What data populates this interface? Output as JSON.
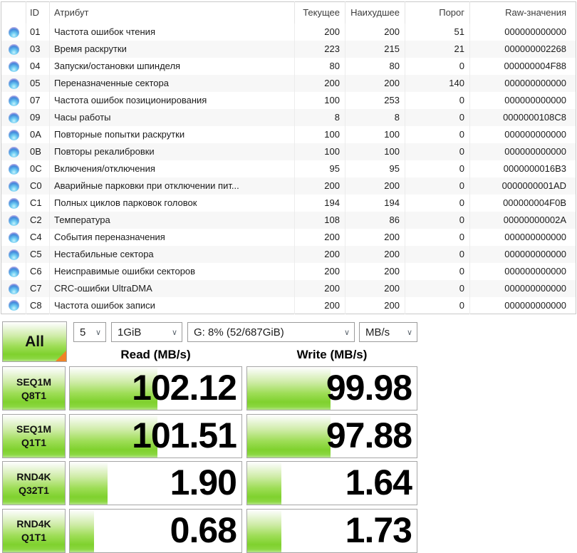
{
  "colors": {
    "gauge_green": "#7fd12e",
    "corner_orange": "#f08326",
    "status_orb_blue": "#3f86da",
    "field_border": "#a6a6a6",
    "table_border": "#c9c9c9",
    "row_stripe": "#f7f7f7"
  },
  "smart_table": {
    "columns": {
      "id": "ID",
      "attribute": "Атрибут",
      "current": "Текущее",
      "worst": "Наихудшее",
      "threshold": "Порог",
      "raw": "Raw-значения"
    },
    "status_icon": "blue-orb-good",
    "rows": [
      {
        "id": "01",
        "attribute": "Частота ошибок чтения",
        "current": "200",
        "worst": "200",
        "threshold": "51",
        "raw": "000000000000"
      },
      {
        "id": "03",
        "attribute": "Время раскрутки",
        "current": "223",
        "worst": "215",
        "threshold": "21",
        "raw": "000000002268"
      },
      {
        "id": "04",
        "attribute": "Запуски/остановки шпинделя",
        "current": "80",
        "worst": "80",
        "threshold": "0",
        "raw": "000000004F88"
      },
      {
        "id": "05",
        "attribute": "Переназначенные сектора",
        "current": "200",
        "worst": "200",
        "threshold": "140",
        "raw": "000000000000"
      },
      {
        "id": "07",
        "attribute": "Частота ошибок позиционирования",
        "current": "100",
        "worst": "253",
        "threshold": "0",
        "raw": "000000000000"
      },
      {
        "id": "09",
        "attribute": "Часы работы",
        "current": "8",
        "worst": "8",
        "threshold": "0",
        "raw": "0000000108C8"
      },
      {
        "id": "0A",
        "attribute": "Повторные попытки раскрутки",
        "current": "100",
        "worst": "100",
        "threshold": "0",
        "raw": "000000000000"
      },
      {
        "id": "0B",
        "attribute": "Повторы рекалибровки",
        "current": "100",
        "worst": "100",
        "threshold": "0",
        "raw": "000000000000"
      },
      {
        "id": "0C",
        "attribute": "Включения/отключения",
        "current": "95",
        "worst": "95",
        "threshold": "0",
        "raw": "0000000016B3"
      },
      {
        "id": "C0",
        "attribute": "Аварийные парковки при отключении пит...",
        "current": "200",
        "worst": "200",
        "threshold": "0",
        "raw": "0000000001AD"
      },
      {
        "id": "C1",
        "attribute": "Полных циклов парковок головок",
        "current": "194",
        "worst": "194",
        "threshold": "0",
        "raw": "000000004F0B"
      },
      {
        "id": "C2",
        "attribute": "Температура",
        "current": "108",
        "worst": "86",
        "threshold": "0",
        "raw": "00000000002A"
      },
      {
        "id": "C4",
        "attribute": "События переназначения",
        "current": "200",
        "worst": "200",
        "threshold": "0",
        "raw": "000000000000"
      },
      {
        "id": "C5",
        "attribute": "Нестабильные сектора",
        "current": "200",
        "worst": "200",
        "threshold": "0",
        "raw": "000000000000"
      },
      {
        "id": "C6",
        "attribute": "Неисправимые ошибки секторов",
        "current": "200",
        "worst": "200",
        "threshold": "0",
        "raw": "000000000000"
      },
      {
        "id": "C7",
        "attribute": "CRC-ошибки UltraDMA",
        "current": "200",
        "worst": "200",
        "threshold": "0",
        "raw": "000000000000"
      },
      {
        "id": "C8",
        "attribute": "Частота ошибок записи",
        "current": "200",
        "worst": "200",
        "threshold": "0",
        "raw": "000000000000"
      }
    ]
  },
  "benchmark": {
    "all_button_label": "All",
    "test_count": "5",
    "test_size": "1GiB",
    "target_drive": "G: 8% (52/687GiB)",
    "unit": "MB/s",
    "read_header": "Read (MB/s)",
    "write_header": "Write (MB/s)",
    "chevron": "∨",
    "rows": [
      {
        "label_line1": "SEQ1M",
        "label_line2": "Q8T1",
        "read": "102.12",
        "write": "99.98",
        "read_fill_pct": 51,
        "write_fill_pct": 49
      },
      {
        "label_line1": "SEQ1M",
        "label_line2": "Q1T1",
        "read": "101.51",
        "write": "97.88",
        "read_fill_pct": 51,
        "write_fill_pct": 49
      },
      {
        "label_line1": "RND4K",
        "label_line2": "Q32T1",
        "read": "1.90",
        "write": "1.64",
        "read_fill_pct": 22,
        "write_fill_pct": 20
      },
      {
        "label_line1": "RND4K",
        "label_line2": "Q1T1",
        "read": "0.68",
        "write": "1.73",
        "read_fill_pct": 14,
        "write_fill_pct": 20
      }
    ]
  }
}
